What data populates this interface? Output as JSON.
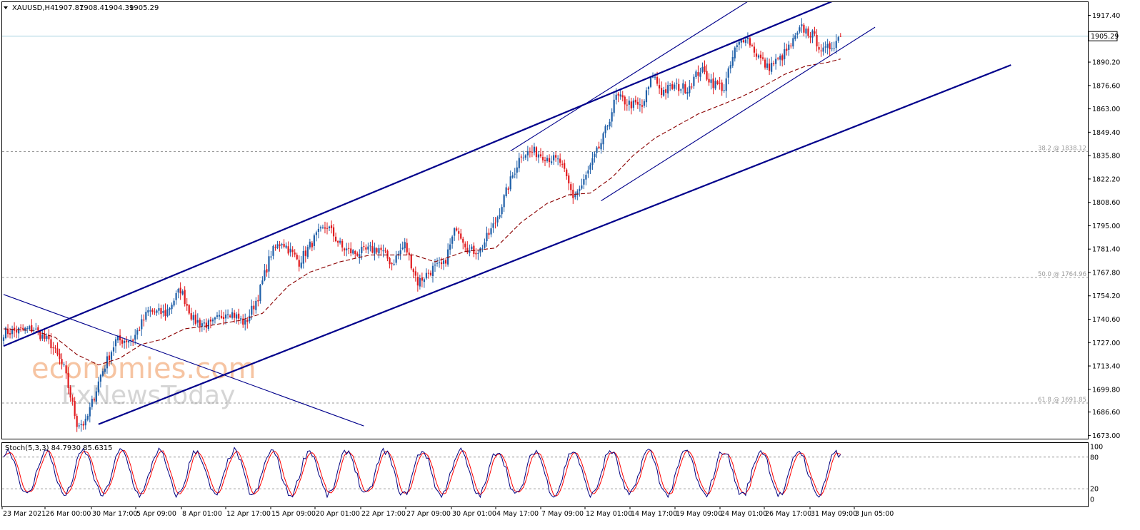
{
  "chart_data": {
    "type": "candlestick",
    "symbol_header": "XAUUSD,H4",
    "ohlc_header": [
      "1907.87",
      "1908.41",
      "1904.39",
      "1905.29"
    ],
    "current_price": 1905.29,
    "current_price_label": "1905.29",
    "price_ticks": [
      1917.4,
      1890.2,
      1876.6,
      1863.0,
      1849.4,
      1835.8,
      1822.2,
      1808.6,
      1795.0,
      1781.4,
      1767.8,
      1754.2,
      1740.6,
      1727.0,
      1713.4,
      1699.8,
      1686.6,
      1673.0
    ],
    "price_tick_labels": [
      "1917.40",
      "1890.20",
      "1876.60",
      "1863.00",
      "1849.40",
      "1835.80",
      "1822.20",
      "1808.60",
      "1795.00",
      "1781.40",
      "1767.80",
      "1754.20",
      "1740.60",
      "1727.00",
      "1713.40",
      "1699.80",
      "1686.60",
      "1673.00"
    ],
    "ylim": [
      1671.5,
      1925.5
    ],
    "x_labels": [
      "23 Mar 2021",
      "26 Mar 00:00",
      "30 Mar 17:00",
      "5 Apr 09:00",
      "8 Apr 01:00",
      "12 Apr 17:00",
      "15 Apr 09:00",
      "20 Apr 01:00",
      "22 Apr 17:00",
      "27 Apr 09:00",
      "30 Apr 01:00",
      "4 May 17:00",
      "7 May 09:00",
      "12 May 01:00",
      "14 May 17:00",
      "19 May 09:00",
      "24 May 01:00",
      "26 May 17:00",
      "31 May 09:00",
      "3 Jun 05:00"
    ],
    "fibonacci_levels": [
      {
        "label": "38.2 @ 1838.12",
        "price": 1838.12
      },
      {
        "label": "50.0 @ 1764.96",
        "price": 1764.96
      },
      {
        "label": "61.8 @ 1691.85",
        "price": 1691.85
      }
    ],
    "close_waypoints": [
      [
        0,
        1733
      ],
      [
        14,
        1735
      ],
      [
        22,
        1726
      ],
      [
        28,
        1712
      ],
      [
        34,
        1680
      ],
      [
        38,
        1680
      ],
      [
        45,
        1708
      ],
      [
        52,
        1728
      ],
      [
        60,
        1729
      ],
      [
        67,
        1745
      ],
      [
        75,
        1744
      ],
      [
        82,
        1758
      ],
      [
        88,
        1740
      ],
      [
        96,
        1737
      ],
      [
        104,
        1746
      ],
      [
        112,
        1738
      ],
      [
        118,
        1754
      ],
      [
        124,
        1779
      ],
      [
        129,
        1786
      ],
      [
        137,
        1774
      ],
      [
        145,
        1789
      ],
      [
        150,
        1795
      ],
      [
        157,
        1782
      ],
      [
        163,
        1779
      ],
      [
        174,
        1782
      ],
      [
        180,
        1773
      ],
      [
        186,
        1784
      ],
      [
        192,
        1762
      ],
      [
        199,
        1770
      ],
      [
        204,
        1772
      ],
      [
        210,
        1795
      ],
      [
        216,
        1780
      ],
      [
        221,
        1781
      ],
      [
        228,
        1797
      ],
      [
        234,
        1818
      ],
      [
        240,
        1837
      ],
      [
        246,
        1838
      ],
      [
        252,
        1835
      ],
      [
        258,
        1832
      ],
      [
        264,
        1812
      ],
      [
        268,
        1818
      ],
      [
        273,
        1832
      ],
      [
        278,
        1846
      ],
      [
        284,
        1870
      ],
      [
        290,
        1866
      ],
      [
        296,
        1864
      ],
      [
        301,
        1883
      ],
      [
        305,
        1873
      ],
      [
        311,
        1876
      ],
      [
        317,
        1875
      ],
      [
        323,
        1886
      ],
      [
        329,
        1878
      ],
      [
        334,
        1875
      ],
      [
        339,
        1897
      ],
      [
        344,
        1906
      ],
      [
        349,
        1895
      ],
      [
        354,
        1887
      ],
      [
        360,
        1892
      ],
      [
        365,
        1900
      ],
      [
        370,
        1910
      ],
      [
        375,
        1906
      ],
      [
        380,
        1896
      ],
      [
        385,
        1901
      ],
      [
        388,
        1906
      ]
    ],
    "moving_average": {
      "style": "dashed",
      "color": "#8b0000",
      "values": [
        [
          0,
          1735
        ],
        [
          14,
          1734
        ],
        [
          24,
          1730
        ],
        [
          34,
          1720
        ],
        [
          44,
          1714
        ],
        [
          54,
          1718
        ],
        [
          64,
          1726
        ],
        [
          74,
          1729
        ],
        [
          84,
          1735
        ],
        [
          96,
          1737
        ],
        [
          110,
          1740
        ],
        [
          120,
          1744
        ],
        [
          132,
          1760
        ],
        [
          142,
          1768
        ],
        [
          156,
          1774
        ],
        [
          170,
          1778
        ],
        [
          190,
          1778
        ],
        [
          200,
          1774
        ],
        [
          214,
          1780
        ],
        [
          228,
          1782
        ],
        [
          240,
          1797
        ],
        [
          252,
          1808
        ],
        [
          262,
          1813
        ],
        [
          272,
          1814
        ],
        [
          282,
          1823
        ],
        [
          292,
          1836
        ],
        [
          302,
          1846
        ],
        [
          312,
          1853
        ],
        [
          322,
          1860
        ],
        [
          332,
          1865
        ],
        [
          342,
          1870
        ],
        [
          352,
          1876
        ],
        [
          362,
          1883
        ],
        [
          372,
          1888
        ],
        [
          382,
          1890
        ],
        [
          388,
          1892
        ]
      ]
    },
    "trendlines": [
      {
        "name": "channel-upper",
        "bars": [
          0,
          408
        ],
        "prices": [
          1725.0,
          1938.0
        ],
        "width": 2.2
      },
      {
        "name": "channel-lower",
        "bars": [
          44,
          467
        ],
        "prices": [
          1679.5,
          1888.5
        ],
        "width": 2.2
      },
      {
        "name": "inner-upper",
        "bars": [
          235,
          352
        ],
        "prices": [
          1838.5,
          1931.0
        ],
        "width": 1.1
      },
      {
        "name": "inner-lower",
        "bars": [
          277,
          404
        ],
        "prices": [
          1809.5,
          1910.5
        ],
        "width": 1.1
      },
      {
        "name": "descending-line",
        "bars": [
          0,
          167
        ],
        "prices": [
          1755.0,
          1678.5
        ],
        "width": 1.1
      }
    ],
    "stochastic": {
      "header": "Stoch(5,3,3) 84.7930 85.6315",
      "main": 84.793,
      "signal": 85.6315,
      "levels": [
        80,
        20
      ],
      "ticks": [
        100,
        80,
        20,
        0
      ],
      "tick_labels": [
        "100",
        "80",
        "20",
        "0"
      ]
    },
    "watermark": {
      "line1": "economies.com",
      "line2": "FxNewsToday"
    },
    "colors": {
      "bull": "#1f5fa8",
      "bear": "#e0191d",
      "trendline": "#00008b",
      "ma": "#8b0000",
      "current_price_line": "#a8d4e0",
      "fib_line": "#9a9a9a",
      "stoch_main": "#000080",
      "stoch_signal": "#ff0000"
    }
  }
}
